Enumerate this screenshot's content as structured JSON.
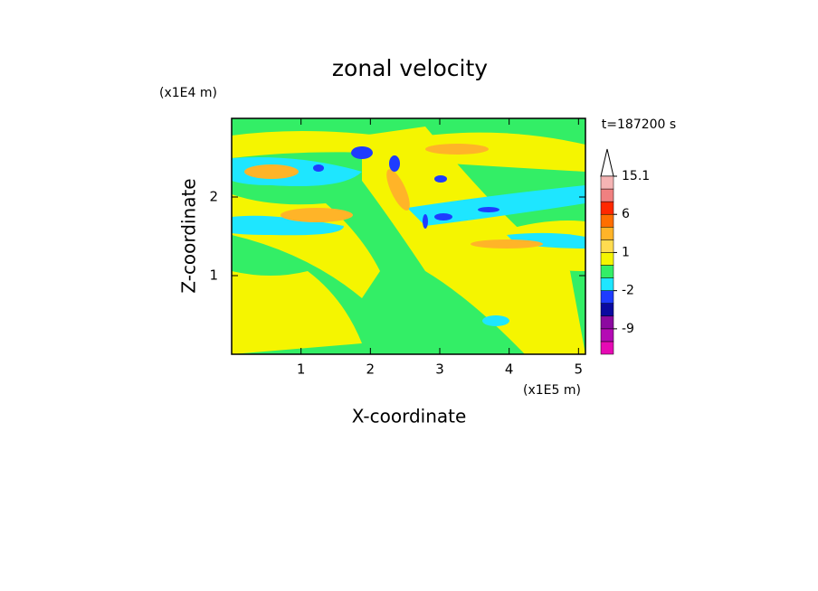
{
  "chart_data": {
    "type": "contour",
    "title": "zonal velocity",
    "x_label": "X-coordinate",
    "y_label": "Z-coordinate",
    "x_unit": "(x1E5 m)",
    "y_unit": "(x1E4 m)",
    "time_label": "t=187200 s",
    "xlim": [
      0,
      5.1
    ],
    "xticks": [
      1,
      2,
      3,
      4,
      5
    ],
    "ylim": [
      0,
      3
    ],
    "yticks": [
      1,
      2
    ],
    "colorbar": {
      "levels": [
        -15,
        -12,
        -9,
        -6,
        -3,
        -2,
        -1,
        0,
        1,
        2,
        4,
        6,
        9,
        12,
        15.1
      ],
      "colors": [
        "#e60ab4",
        "#b40ab4",
        "#8c0aa0",
        "#0a0aa0",
        "#1e3cff",
        "#1ee6ff",
        "#33ee66",
        "#f5f500",
        "#ffdc50",
        "#ffb428",
        "#ff6e00",
        "#ff2800",
        "#f08080",
        "#f5b4b4"
      ],
      "ticks": [
        15.1,
        6,
        1,
        -2,
        -9
      ]
    }
  }
}
